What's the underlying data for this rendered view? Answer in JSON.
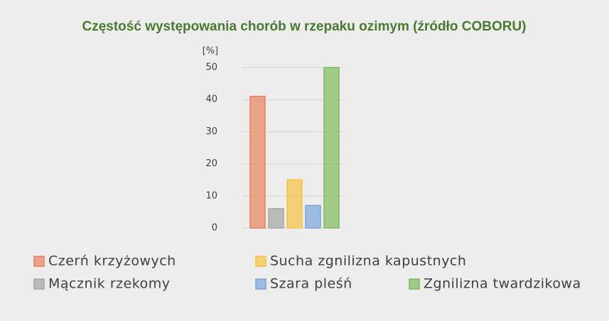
{
  "chart_data": {
    "type": "bar",
    "title": "Częstość występowania chorób  w rzepaku ozimym (źródło COBORU)",
    "y_label": "[%]",
    "ylim": [
      0,
      50
    ],
    "yticks": [
      0,
      10,
      20,
      30,
      40,
      50
    ],
    "grid": true,
    "series": [
      {
        "name": "Czerń krzyżowych",
        "color": "#e8825e",
        "values": [
          41
        ]
      },
      {
        "name": "Mącznik rzekomy",
        "color": "#a5a5a5",
        "values": [
          6
        ]
      },
      {
        "name": "Sucha zgnilizna kapustnych",
        "color": "#f5c242",
        "values": [
          15
        ]
      },
      {
        "name": "Szara pleśń",
        "color": "#7aa5d8",
        "values": [
          7
        ]
      },
      {
        "name": "Zgnilizna twardzikowa",
        "color": "#7fba5a",
        "values": [
          50
        ]
      }
    ]
  }
}
